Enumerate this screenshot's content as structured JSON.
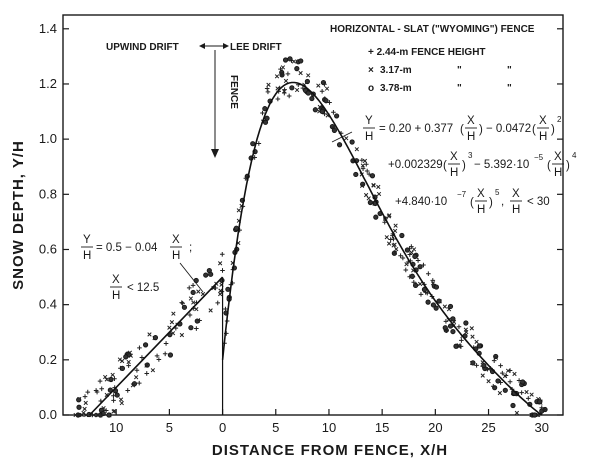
{
  "chart_data": {
    "type": "scatter",
    "title": "HORIZONTAL - SLAT (\"WYOMING\") FENCE",
    "xlabel": "DISTANCE FROM FENCE, X/H",
    "ylabel": "SNOW DEPTH, Y/H",
    "xlim": [
      -15,
      32
    ],
    "ylim": [
      0,
      1.45
    ],
    "x_tick_values": [
      -10,
      -5,
      0,
      5,
      10,
      15,
      20,
      25,
      30
    ],
    "x_tick_labels": [
      "10",
      "5",
      "0",
      "5",
      "10",
      "15",
      "20",
      "25",
      "30"
    ],
    "y_tick_values": [
      0,
      0.2,
      0.4,
      0.6,
      0.8,
      1.0,
      1.2,
      1.4
    ],
    "y_tick_labels": [
      "0.0",
      "0.2",
      "0.4",
      "0.6",
      "0.8",
      "1.0",
      "1.2",
      "1.4"
    ],
    "grid": false,
    "legend_placement": "top-right",
    "legend_header": "+ 2.44-m FENCE HEIGHT",
    "series": [
      {
        "name": "2.44-m FENCE HEIGHT",
        "marker": "+",
        "label_text": "2.44-m"
      },
      {
        "name": "3.17-m",
        "marker": "x",
        "label_text": "3.17-m"
      },
      {
        "name": "3.78-m",
        "marker": "o",
        "label_text": "3.78-m"
      }
    ],
    "legend_ditto": "\"",
    "fit_curve_lee": {
      "coefficients": [
        0.2,
        0.377,
        -0.0472,
        0.002329,
        -5.392e-05,
        4.84e-07
      ],
      "domain": [
        0,
        30
      ]
    },
    "fit_curve_upwind": {
      "intercept": 0.5,
      "slope": -0.04,
      "domain": [
        -12.5,
        0
      ]
    },
    "annotations": {
      "upwind": "UPWIND DRIFT",
      "lee": "LEE DRIFT",
      "fence": "FENCE",
      "upwind_eq_a": "= 0.5 − 0.04",
      "upwind_cond": "< 12.5",
      "lee_eq_line1": "= 0.20 + 0.377",
      "lee_eq_line1b": "− 0.0472",
      "lee_eq_line2": "+0.002329",
      "lee_eq_line2b": "− 5.392·10",
      "lee_eq_line3": "+4.840·10",
      "lee_eq_cond": "< 30",
      "frac_Y": "Y",
      "frac_H": "H",
      "frac_X": "X",
      "exp_2": "2",
      "exp_3": "3",
      "exp_4": "4",
      "exp_5": "5",
      "exp_neg5": "−5",
      "exp_neg7": "−7"
    }
  }
}
